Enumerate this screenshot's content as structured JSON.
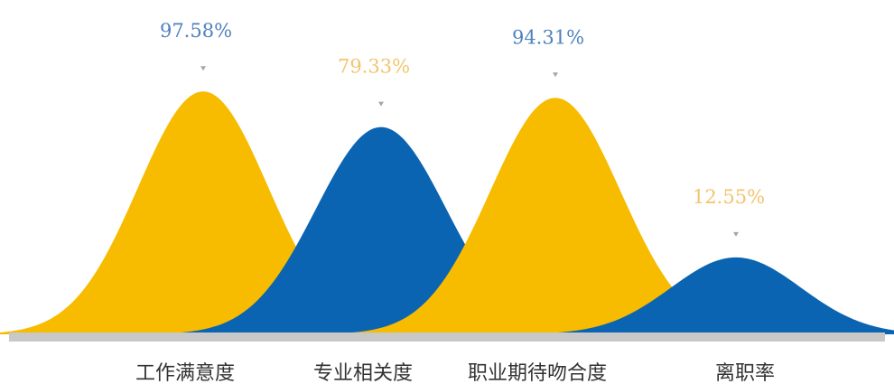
{
  "chart_data": {
    "type": "area",
    "categories": [
      "工作满意度",
      "专业相关度",
      "职业期待吻合度",
      "离职率"
    ],
    "values": [
      97.58,
      79.33,
      94.31,
      12.55
    ],
    "value_labels": [
      "97.58%",
      "79.33%",
      "94.31%",
      "12.55%"
    ],
    "colors": [
      "#f7bc00",
      "#0b64b2",
      "#f7bc00",
      "#0b64b2"
    ],
    "label_colors": [
      "#4f81bd",
      "#f2c46e",
      "#4f81bd",
      "#f2c46e"
    ],
    "baseline_color": "#c8c8c8",
    "marker_color": "#a6a6a6",
    "title": "",
    "xlabel": "",
    "ylabel": "",
    "grid": false,
    "legend": "none"
  }
}
